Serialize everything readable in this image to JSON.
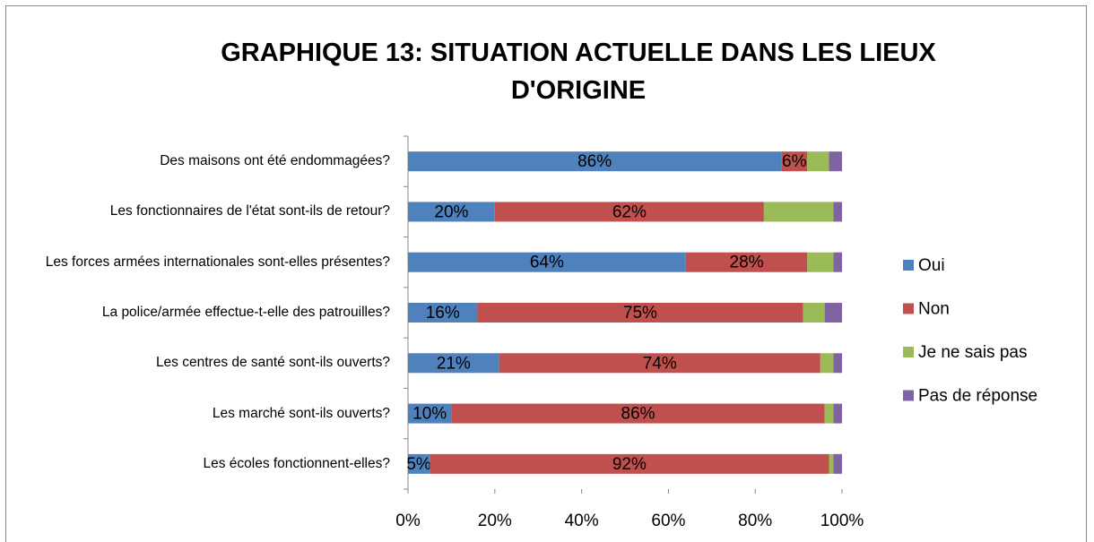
{
  "chart_data": {
    "type": "stacked_barh",
    "title": "GRAPHIQUE 13: SITUATION ACTUELLE DANS LES LIEUX D'ORIGINE",
    "categories": [
      "Des maisons ont été endommagées?",
      "Les fonctionnaires de l'état sont-ils de retour?",
      "Les forces armées internationales sont-elles présentes?",
      "La police/armée effectue-t-elle des patrouilles?",
      "Les centres de santé sont-ils ouverts?",
      "Les marché sont-ils ouverts?",
      "Les écoles fonctionnent-elles?"
    ],
    "series": [
      {
        "name": "Oui",
        "color": "#4f81bd",
        "values": [
          86,
          20,
          64,
          16,
          21,
          10,
          5
        ],
        "value_labels": [
          "86%",
          "20%",
          "64%",
          "16%",
          "21%",
          "10%",
          "5%"
        ]
      },
      {
        "name": "Non",
        "color": "#c0504d",
        "values": [
          6,
          62,
          28,
          75,
          74,
          86,
          92
        ],
        "value_labels": [
          "6%",
          "62%",
          "28%",
          "75%",
          "74%",
          "86%",
          "92%"
        ]
      },
      {
        "name": "Je ne sais pas",
        "color": "#9bbb59",
        "values": [
          5,
          16,
          6,
          5,
          3,
          2,
          1
        ]
      },
      {
        "name": "Pas de réponse",
        "color": "#8064a2",
        "values": [
          3,
          2,
          2,
          4,
          2,
          2,
          2
        ]
      }
    ],
    "xlim": [
      0,
      100
    ],
    "xticks": [
      {
        "value": 0,
        "label": "0%"
      },
      {
        "value": 20,
        "label": "20%"
      },
      {
        "value": 40,
        "label": "40%"
      },
      {
        "value": 60,
        "label": "60%"
      },
      {
        "value": 80,
        "label": "80%"
      },
      {
        "value": 100,
        "label": "100%"
      }
    ],
    "legend": "right"
  }
}
